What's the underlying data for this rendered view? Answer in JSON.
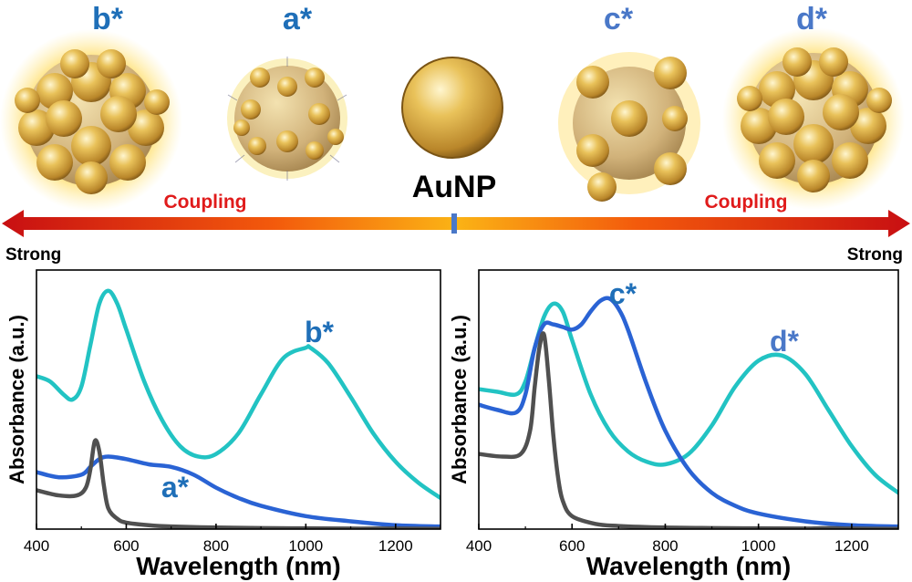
{
  "top": {
    "particles": [
      {
        "label": "b*",
        "color": "#1f6fb8"
      },
      {
        "label": "a*",
        "color": "#1f6fb8"
      },
      {
        "label": "c*",
        "color": "#4a78c8"
      },
      {
        "label": "d*",
        "color": "#4a78c8"
      }
    ],
    "center_label": "AuNP",
    "coupling_left": "Coupling",
    "coupling_right": "Coupling",
    "strong_left": "Strong",
    "strong_right": "Strong",
    "coupling_color": "#e01b1b"
  },
  "colors": {
    "aunp": "#505050",
    "blue": "#2a63d4",
    "cyan": "#22c3c3",
    "label_blue": "#1f6fb8",
    "label_blue2": "#4a78c8"
  },
  "chart_data": [
    {
      "type": "line",
      "xlabel": "Wavelength (nm)",
      "ylabel": "Absorbance (a.u.)",
      "xlim": [
        400,
        1300
      ],
      "ylim": [
        0,
        1
      ],
      "xticks": [
        400,
        600,
        800,
        1000,
        1200
      ],
      "annotations": [
        "b*",
        "a*"
      ],
      "series": [
        {
          "name": "b*",
          "color": "cyan",
          "x": [
            400,
            430,
            460,
            480,
            500,
            520,
            540,
            560,
            580,
            600,
            640,
            680,
            720,
            760,
            800,
            850,
            900,
            950,
            1000,
            1010,
            1050,
            1100,
            1150,
            1200,
            1250,
            1300
          ],
          "y": [
            0.59,
            0.57,
            0.52,
            0.5,
            0.55,
            0.71,
            0.87,
            0.92,
            0.87,
            0.77,
            0.57,
            0.42,
            0.32,
            0.28,
            0.29,
            0.37,
            0.52,
            0.66,
            0.7,
            0.7,
            0.64,
            0.51,
            0.37,
            0.26,
            0.18,
            0.12
          ]
        },
        {
          "name": "a*",
          "color": "blue",
          "x": [
            400,
            450,
            500,
            520,
            540,
            560,
            600,
            650,
            700,
            750,
            800,
            850,
            900,
            1000,
            1100,
            1200,
            1300
          ],
          "y": [
            0.22,
            0.2,
            0.21,
            0.24,
            0.27,
            0.28,
            0.27,
            0.25,
            0.24,
            0.21,
            0.16,
            0.12,
            0.09,
            0.05,
            0.03,
            0.015,
            0.01
          ]
        },
        {
          "color": "aunp",
          "x": [
            400,
            450,
            490,
            510,
            520,
            530,
            540,
            550,
            560,
            580,
            600,
            650,
            700,
            800,
            900,
            1000,
            1100,
            1200,
            1300
          ],
          "y": [
            0.15,
            0.13,
            0.13,
            0.16,
            0.23,
            0.34,
            0.3,
            0.17,
            0.08,
            0.04,
            0.025,
            0.015,
            0.01,
            0.006,
            0.004,
            0.003,
            0.002,
            0.002,
            0.001
          ]
        }
      ]
    },
    {
      "type": "line",
      "xlabel": "Wavelength (nm)",
      "ylabel": "Absorbance (a.u.)",
      "xlim": [
        400,
        1300
      ],
      "ylim": [
        0,
        1
      ],
      "xticks": [
        400,
        600,
        800,
        1000,
        1200
      ],
      "annotations": [
        "c*",
        "d*"
      ],
      "series": [
        {
          "name": "d*",
          "color": "cyan",
          "x": [
            400,
            440,
            480,
            500,
            520,
            540,
            560,
            580,
            600,
            640,
            680,
            720,
            760,
            800,
            850,
            900,
            950,
            1000,
            1050,
            1100,
            1150,
            1200,
            1250,
            1300
          ],
          "y": [
            0.54,
            0.53,
            0.52,
            0.57,
            0.7,
            0.82,
            0.87,
            0.84,
            0.73,
            0.52,
            0.38,
            0.3,
            0.26,
            0.25,
            0.29,
            0.4,
            0.55,
            0.65,
            0.67,
            0.6,
            0.46,
            0.32,
            0.21,
            0.14
          ]
        },
        {
          "name": "c*",
          "color": "blue",
          "x": [
            400,
            440,
            480,
            500,
            520,
            540,
            560,
            580,
            600,
            620,
            640,
            660,
            680,
            700,
            720,
            760,
            800,
            850,
            900,
            950,
            1000,
            1100,
            1200,
            1300
          ],
          "y": [
            0.48,
            0.46,
            0.45,
            0.52,
            0.7,
            0.79,
            0.79,
            0.78,
            0.77,
            0.79,
            0.84,
            0.88,
            0.89,
            0.85,
            0.77,
            0.56,
            0.38,
            0.23,
            0.14,
            0.09,
            0.06,
            0.03,
            0.015,
            0.01
          ]
        },
        {
          "color": "aunp",
          "x": [
            400,
            450,
            490,
            510,
            520,
            530,
            540,
            550,
            560,
            570,
            580,
            600,
            650,
            700,
            800,
            900,
            1000,
            1100,
            1150,
            1200,
            1300
          ],
          "y": [
            0.29,
            0.28,
            0.29,
            0.38,
            0.55,
            0.7,
            0.75,
            0.58,
            0.36,
            0.2,
            0.11,
            0.05,
            0.02,
            0.012,
            0.006,
            0.004,
            0.003,
            0.002,
            0.004,
            0.002,
            0.001
          ]
        }
      ]
    }
  ]
}
